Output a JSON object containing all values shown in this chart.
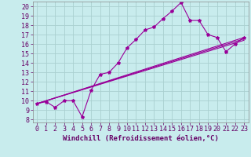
{
  "xlabel": "Windchill (Refroidissement éolien,°C)",
  "ylabel": "",
  "xlim": [
    -0.5,
    23.5
  ],
  "ylim": [
    7.7,
    20.5
  ],
  "xticks": [
    0,
    1,
    2,
    3,
    4,
    5,
    6,
    7,
    8,
    9,
    10,
    11,
    12,
    13,
    14,
    15,
    16,
    17,
    18,
    19,
    20,
    21,
    22,
    23
  ],
  "yticks": [
    8,
    9,
    10,
    11,
    12,
    13,
    14,
    15,
    16,
    17,
    18,
    19,
    20
  ],
  "bg_color": "#c8eced",
  "grid_color": "#aad0d0",
  "line_color": "#990099",
  "line1_x": [
    0,
    1,
    2,
    3,
    4,
    5,
    6,
    7,
    8,
    9,
    10,
    11,
    12,
    13,
    14,
    15,
    16,
    17,
    18,
    19,
    20,
    21,
    22,
    23
  ],
  "line1_y": [
    9.7,
    9.9,
    9.3,
    10.0,
    10.0,
    8.3,
    11.1,
    12.8,
    13.0,
    14.0,
    15.6,
    16.5,
    17.5,
    17.8,
    18.7,
    19.5,
    20.4,
    18.5,
    18.5,
    17.0,
    16.7,
    15.2,
    16.0,
    16.7
  ],
  "line2_x": [
    0,
    23
  ],
  "line2_y": [
    9.7,
    16.4
  ],
  "line3_x": [
    0,
    23
  ],
  "line3_y": [
    9.7,
    16.55
  ],
  "line4_x": [
    0,
    23
  ],
  "line4_y": [
    9.7,
    16.7
  ],
  "font_size": 6.0,
  "xlabel_fontsize": 6.5
}
